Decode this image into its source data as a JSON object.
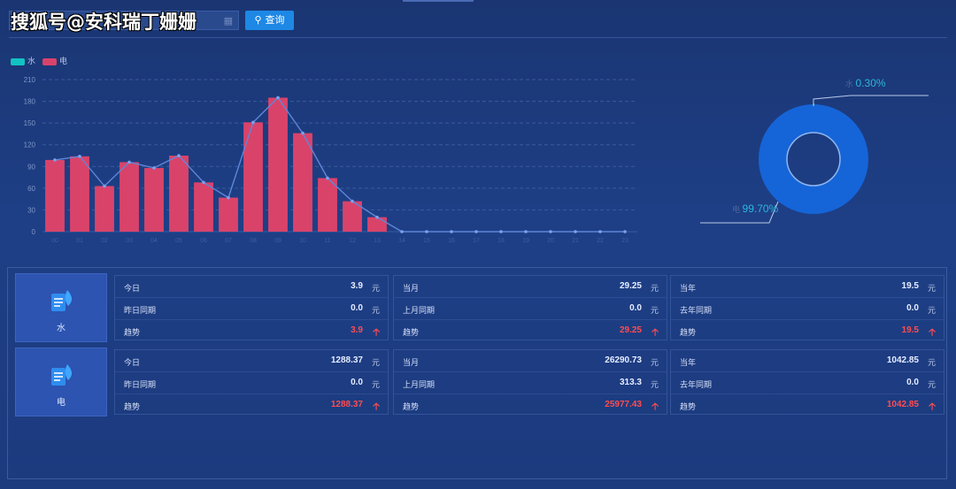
{
  "watermark": "搜狐号@安科瑞丁姗姗",
  "toolbar": {
    "query_label": "查询",
    "calendar_icon": "calendar-icon",
    "search_icon": "search-icon"
  },
  "legend": [
    {
      "name": "水",
      "color": "#13c2c2"
    },
    {
      "name": "电",
      "color": "#d9436a"
    }
  ],
  "chart_data": [
    {
      "type": "bar",
      "categories": [
        "00",
        "01",
        "02",
        "03",
        "04",
        "05",
        "06",
        "07",
        "08",
        "09",
        "10",
        "11",
        "12",
        "13",
        "14",
        "15",
        "16",
        "17",
        "18",
        "19",
        "20",
        "21",
        "22",
        "23"
      ],
      "series": [
        {
          "name": "水",
          "values": [
            0,
            0,
            0,
            0,
            0,
            0,
            0,
            0,
            0,
            0,
            0,
            0,
            0,
            0,
            0,
            0,
            0,
            0,
            0,
            0,
            0,
            0,
            0,
            0
          ],
          "color": "#13c2c2"
        },
        {
          "name": "电",
          "values": [
            99,
            104,
            63,
            96,
            88,
            105,
            68,
            47,
            151,
            185,
            136,
            74,
            42,
            20,
            0,
            0,
            0,
            0,
            0,
            0,
            0,
            0,
            0,
            0
          ],
          "color": "#d9436a"
        }
      ],
      "line_overlay": [
        99,
        104,
        63,
        96,
        88,
        105,
        68,
        47,
        151,
        185,
        136,
        74,
        42,
        20,
        0,
        0,
        0,
        0,
        0,
        0,
        0,
        0,
        0,
        0
      ],
      "yticks": [
        0,
        30,
        60,
        90,
        120,
        150,
        180,
        210
      ],
      "ylim": [
        0,
        210
      ],
      "grid": true,
      "legend_position": "top-left"
    },
    {
      "type": "pie",
      "labels": [
        "水",
        "电"
      ],
      "values": [
        0.3,
        99.7
      ],
      "display": [
        "0.30%",
        "99.70%"
      ],
      "colors": [
        "#13c2c2",
        "#1565d8"
      ]
    }
  ],
  "rows": [
    {
      "category": "水",
      "icon": "water-document-icon",
      "blocks": [
        {
          "cells": [
            {
              "label": "今日",
              "value": "3.9",
              "unit": "元"
            },
            {
              "label": "昨日同期",
              "value": "0.0",
              "unit": "元"
            },
            {
              "label": "趋势",
              "value": "3.9",
              "trend": "up"
            }
          ]
        },
        {
          "cells": [
            {
              "label": "当月",
              "value": "29.25",
              "unit": "元"
            },
            {
              "label": "上月同期",
              "value": "0.0",
              "unit": "元"
            },
            {
              "label": "趋势",
              "value": "29.25",
              "trend": "up"
            }
          ]
        },
        {
          "cells": [
            {
              "label": "当年",
              "value": "19.5",
              "unit": "元"
            },
            {
              "label": "去年同期",
              "value": "0.0",
              "unit": "元"
            },
            {
              "label": "趋势",
              "value": "19.5",
              "trend": "up"
            }
          ]
        }
      ]
    },
    {
      "category": "电",
      "icon": "electric-document-icon",
      "blocks": [
        {
          "cells": [
            {
              "label": "今日",
              "value": "1288.37",
              "unit": "元"
            },
            {
              "label": "昨日同期",
              "value": "0.0",
              "unit": "元"
            },
            {
              "label": "趋势",
              "value": "1288.37",
              "trend": "up"
            }
          ]
        },
        {
          "cells": [
            {
              "label": "当月",
              "value": "26290.73",
              "unit": "元"
            },
            {
              "label": "上月同期",
              "value": "313.3",
              "unit": "元"
            },
            {
              "label": "趋势",
              "value": "25977.43",
              "trend": "up"
            }
          ]
        },
        {
          "cells": [
            {
              "label": "当年",
              "value": "1042.85",
              "unit": "元"
            },
            {
              "label": "去年同期",
              "value": "0.0",
              "unit": "元"
            },
            {
              "label": "趋势",
              "value": "1042.85",
              "trend": "up"
            }
          ]
        }
      ]
    }
  ]
}
